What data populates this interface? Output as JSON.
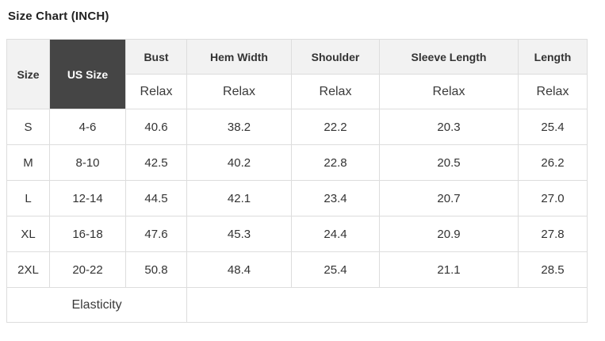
{
  "page": {
    "title": "Size Chart (INCH)"
  },
  "table": {
    "corner_headers": {
      "size": "Size",
      "us_size": "US Size"
    },
    "measure_columns": [
      "Bust",
      "Hem Width",
      "Shoulder",
      "Sleeve Length",
      "Length"
    ],
    "fit_row": [
      "Relax",
      "Relax",
      "Relax",
      "Relax",
      "Relax"
    ],
    "rows": [
      {
        "size": "S",
        "us_size": "4-6",
        "values": [
          "40.6",
          "38.2",
          "22.2",
          "20.3",
          "25.4"
        ]
      },
      {
        "size": "M",
        "us_size": "8-10",
        "values": [
          "42.5",
          "40.2",
          "22.8",
          "20.5",
          "26.2"
        ]
      },
      {
        "size": "L",
        "us_size": "12-14",
        "values": [
          "44.5",
          "42.1",
          "23.4",
          "20.7",
          "27.0"
        ]
      },
      {
        "size": "XL",
        "us_size": "16-18",
        "values": [
          "47.6",
          "45.3",
          "24.4",
          "20.9",
          "27.8"
        ]
      },
      {
        "size": "2XL",
        "us_size": "20-22",
        "values": [
          "50.8",
          "48.4",
          "25.4",
          "21.1",
          "28.5"
        ]
      }
    ],
    "footer": {
      "label": "Elasticity",
      "value": ""
    }
  },
  "colors": {
    "header_background": "#f2f2f2",
    "us_size_cell_background": "#454545",
    "us_size_cell_text": "#ffffff",
    "table_border": "#dddddd",
    "body_text": "#333333"
  }
}
